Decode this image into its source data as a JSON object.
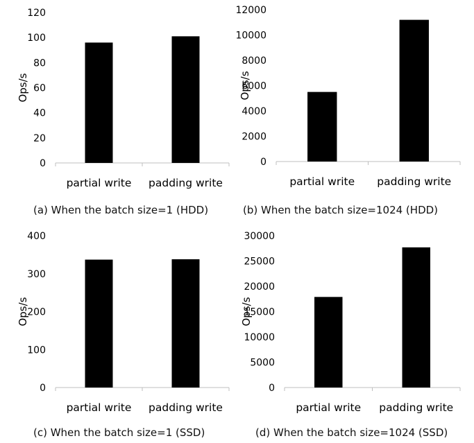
{
  "figure": {
    "captions": [
      "(a) When the batch size=1 (HDD)",
      "(b) When the batch size=1024 (HDD)",
      "(c) When the batch size=1 (SSD)",
      "(d) When the batch size=1024 (SSD)"
    ]
  },
  "chart_data": [
    {
      "type": "bar",
      "categories": [
        "partial write",
        "padding write"
      ],
      "values": [
        96,
        101
      ],
      "ylabel": "Ops/s",
      "ylim": [
        0,
        120
      ],
      "yticks": [
        0,
        20,
        40,
        60,
        80,
        100,
        120
      ],
      "ytick_labels": [
        "0",
        "20",
        "40",
        "60",
        "80",
        "100",
        "120"
      ],
      "bar_color": "#000000",
      "grid": false,
      "legend": "none"
    },
    {
      "type": "bar",
      "categories": [
        "partial write",
        "padding write"
      ],
      "values": [
        5500,
        11200
      ],
      "ylabel": "Ops/s",
      "ylim": [
        0,
        12000
      ],
      "yticks": [
        0,
        2000,
        4000,
        6000,
        8000,
        10000,
        12000
      ],
      "ytick_labels": [
        "0",
        "2000",
        "4000",
        "6000",
        "8000",
        "10000",
        "12000"
      ],
      "bar_color": "#000000",
      "grid": false,
      "legend": "none"
    },
    {
      "type": "bar",
      "categories": [
        "partial write",
        "padding write"
      ],
      "values": [
        337,
        338
      ],
      "ylabel": "Ops/s",
      "ylim": [
        0,
        400
      ],
      "yticks": [
        0,
        100,
        200,
        300,
        400
      ],
      "ytick_labels": [
        "0",
        "100",
        "200",
        "300",
        "400"
      ],
      "bar_color": "#000000",
      "grid": false,
      "legend": "none"
    },
    {
      "type": "bar",
      "categories": [
        "partial write",
        "padding write"
      ],
      "values": [
        17900,
        27700
      ],
      "ylabel": "Ops/s",
      "ylim": [
        0,
        30000
      ],
      "yticks": [
        0,
        5000,
        10000,
        15000,
        20000,
        25000,
        30000
      ],
      "ytick_labels": [
        "0",
        "5000",
        "10000",
        "15000",
        "20000",
        "25000",
        "30000"
      ],
      "bar_color": "#000000",
      "grid": false,
      "legend": "none"
    }
  ]
}
